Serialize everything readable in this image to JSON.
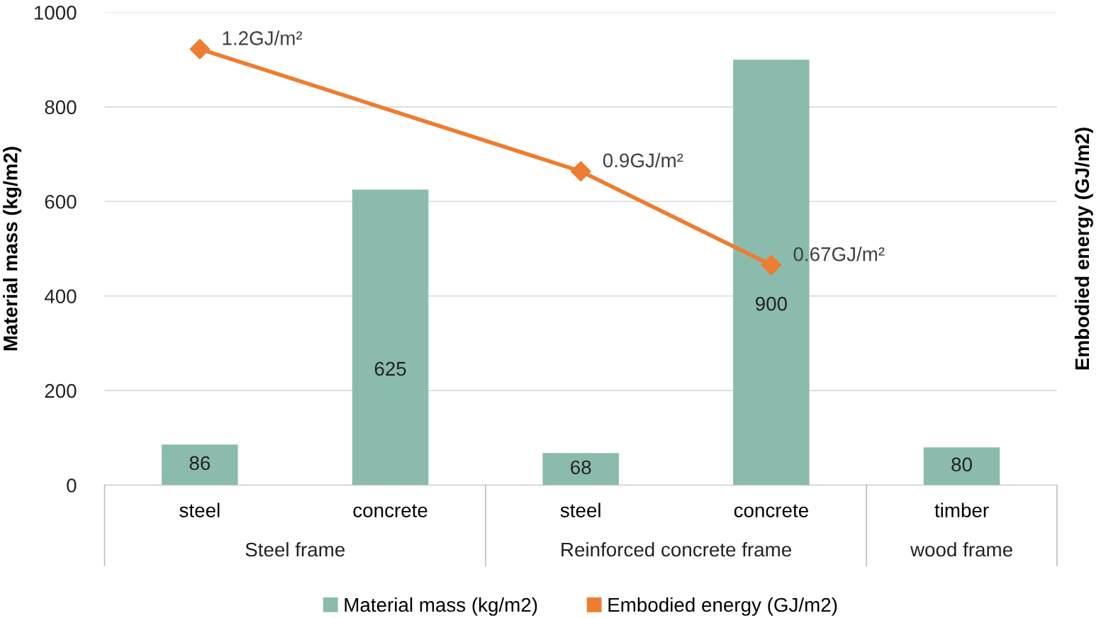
{
  "chart_data": {
    "type": "bar",
    "categories": [
      "steel",
      "concrete",
      "steel",
      "concrete",
      "timber"
    ],
    "ylabel": "Material mass (kg/m2)",
    "y2label": "Embodied energy (GJ/m2)",
    "ylim": [
      0,
      1000
    ],
    "yticks": [
      0,
      200,
      400,
      600,
      800,
      1000
    ],
    "y2lim": [
      0.13,
      1.29
    ],
    "grid": "y",
    "legend": "bottom",
    "annotations": [
      "Steel frame",
      "Reinforced concrete frame",
      "wood frame"
    ],
    "series": [
      {
        "name": "Material mass (kg/m2)",
        "color": "#8abbad",
        "values": [
          86,
          625,
          68,
          900,
          80
        ],
        "data_labels": true
      },
      {
        "name": "Embodied energy (GJ/m2)",
        "type": "line",
        "axis": "y2",
        "color": "#ed7d31",
        "marker": "diamond",
        "line_style": "solid",
        "values": [
          1.2,
          null,
          0.9,
          0.67,
          null
        ],
        "value_labels": [
          "1.2GJ/m²",
          null,
          "0.9GJ/m²",
          "0.67GJ/m²",
          null
        ]
      }
    ]
  }
}
